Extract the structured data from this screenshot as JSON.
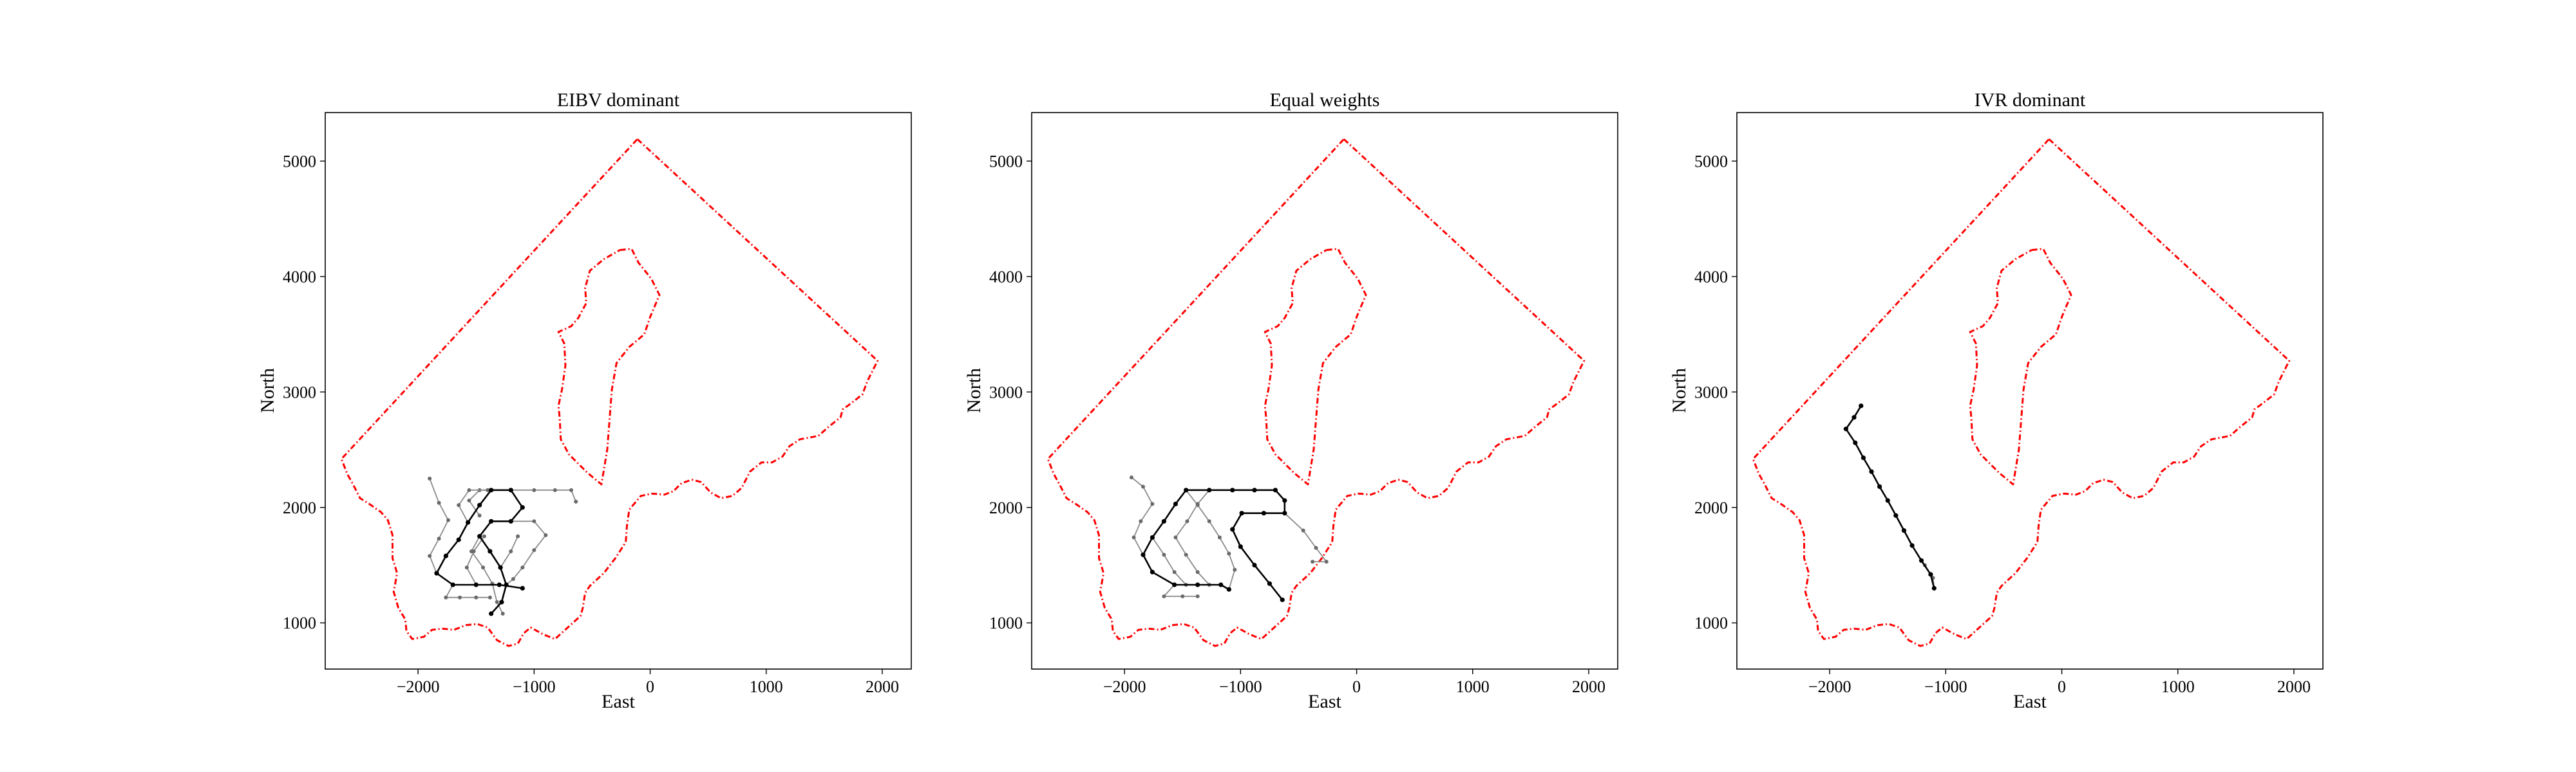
{
  "chart_data": [
    {
      "type": "line",
      "title": "EIBV dominant",
      "xlabel": "East",
      "ylabel": "North",
      "xlim": [
        -2800,
        2250
      ],
      "ylim": [
        600,
        5420
      ],
      "xticks": [
        -2000,
        -1000,
        0,
        1000,
        2000
      ],
      "yticks": [
        1000,
        2000,
        3000,
        4000,
        5000
      ],
      "trajectory": [
        [
          -1100,
          1300
        ],
        [
          -1300,
          1330
        ],
        [
          -1500,
          1330
        ],
        [
          -1700,
          1330
        ],
        [
          -1840,
          1430
        ],
        [
          -1760,
          1580
        ],
        [
          -1650,
          1720
        ],
        [
          -1570,
          1870
        ],
        [
          -1470,
          2020
        ],
        [
          -1370,
          2150
        ],
        [
          -1200,
          2150
        ],
        [
          -1100,
          2000
        ],
        [
          -1200,
          1880
        ],
        [
          -1370,
          1880
        ],
        [
          -1470,
          1750
        ],
        [
          -1380,
          1620
        ],
        [
          -1290,
          1480
        ],
        [
          -1240,
          1330
        ],
        [
          -1280,
          1180
        ],
        [
          -1370,
          1080
        ]
      ],
      "branches": [
        [
          [
            -1700,
            1330
          ],
          [
            -1760,
            1220
          ],
          [
            -1640,
            1220
          ],
          [
            -1500,
            1220
          ],
          [
            -1380,
            1220
          ]
        ],
        [
          [
            -1840,
            1430
          ],
          [
            -1900,
            1580
          ],
          [
            -1820,
            1730
          ],
          [
            -1740,
            1890
          ],
          [
            -1820,
            2040
          ],
          [
            -1900,
            2250
          ]
        ],
        [
          [
            -1500,
            1330
          ],
          [
            -1580,
            1480
          ],
          [
            -1520,
            1620
          ],
          [
            -1430,
            1750
          ]
        ],
        [
          [
            -1370,
            2150
          ],
          [
            -1470,
            2150
          ],
          [
            -1560,
            2060
          ],
          [
            -1470,
            1930
          ]
        ],
        [
          [
            -1200,
            2150
          ],
          [
            -1000,
            2150
          ],
          [
            -820,
            2150
          ],
          [
            -680,
            2150
          ],
          [
            -640,
            2050
          ]
        ],
        [
          [
            -1200,
            1880
          ],
          [
            -1000,
            1880
          ],
          [
            -900,
            1760
          ],
          [
            -1000,
            1630
          ],
          [
            -1100,
            1480
          ],
          [
            -1180,
            1380
          ],
          [
            -1240,
            1330
          ]
        ],
        [
          [
            -1470,
            1750
          ],
          [
            -1540,
            1620
          ],
          [
            -1440,
            1480
          ],
          [
            -1360,
            1340
          ],
          [
            -1320,
            1180
          ],
          [
            -1270,
            1080
          ]
        ],
        [
          [
            -1570,
            1870
          ],
          [
            -1650,
            2020
          ],
          [
            -1560,
            2150
          ],
          [
            -1400,
            2150
          ]
        ],
        [
          [
            -1290,
            1480
          ],
          [
            -1200,
            1620
          ],
          [
            -1140,
            1750
          ]
        ]
      ]
    },
    {
      "type": "line",
      "title": "Equal weights",
      "xlabel": "East",
      "ylabel": "North",
      "xlim": [
        -2800,
        2250
      ],
      "ylim": [
        600,
        5420
      ],
      "xticks": [
        -2000,
        -1000,
        0,
        1000,
        2000
      ],
      "yticks": [
        1000,
        2000,
        3000,
        4000,
        5000
      ],
      "trajectory": [
        [
          -1100,
          1290
        ],
        [
          -1170,
          1330
        ],
        [
          -1370,
          1330
        ],
        [
          -1570,
          1330
        ],
        [
          -1760,
          1440
        ],
        [
          -1840,
          1590
        ],
        [
          -1760,
          1740
        ],
        [
          -1660,
          1880
        ],
        [
          -1560,
          2030
        ],
        [
          -1470,
          2150
        ],
        [
          -1270,
          2150
        ],
        [
          -1070,
          2150
        ],
        [
          -880,
          2150
        ],
        [
          -700,
          2150
        ],
        [
          -620,
          2060
        ],
        [
          -620,
          1950
        ],
        [
          -800,
          1950
        ],
        [
          -990,
          1950
        ],
        [
          -1070,
          1810
        ],
        [
          -1000,
          1660
        ],
        [
          -880,
          1500
        ],
        [
          -750,
          1340
        ],
        [
          -640,
          1200
        ]
      ],
      "branches": [
        [
          [
            -1470,
            2150
          ],
          [
            -1370,
            2020
          ],
          [
            -1270,
            1880
          ],
          [
            -1180,
            1740
          ],
          [
            -1100,
            1600
          ],
          [
            -1050,
            1460
          ],
          [
            -1100,
            1290
          ]
        ],
        [
          [
            -1570,
            1330
          ],
          [
            -1660,
            1230
          ],
          [
            -1500,
            1230
          ],
          [
            -1370,
            1230
          ]
        ],
        [
          [
            -1840,
            1590
          ],
          [
            -1920,
            1740
          ],
          [
            -1860,
            1880
          ],
          [
            -1760,
            2030
          ],
          [
            -1840,
            2180
          ],
          [
            -1940,
            2260
          ]
        ],
        [
          [
            -1560,
            2030
          ],
          [
            -1660,
            1880
          ],
          [
            -1760,
            1740
          ],
          [
            -1660,
            1590
          ],
          [
            -1570,
            1440
          ],
          [
            -1470,
            1330
          ]
        ],
        [
          [
            -620,
            1950
          ],
          [
            -460,
            1800
          ],
          [
            -350,
            1650
          ],
          [
            -260,
            1530
          ],
          [
            -380,
            1530
          ]
        ],
        [
          [
            -1270,
            2150
          ],
          [
            -1370,
            2030
          ],
          [
            -1460,
            1880
          ],
          [
            -1560,
            1740
          ],
          [
            -1470,
            1590
          ],
          [
            -1370,
            1440
          ],
          [
            -1270,
            1330
          ]
        ]
      ]
    },
    {
      "type": "line",
      "title": "IVR dominant",
      "xlabel": "East",
      "ylabel": "North",
      "xlim": [
        -2800,
        2250
      ],
      "ylim": [
        600,
        5420
      ],
      "xticks": [
        -2000,
        -1000,
        0,
        1000,
        2000
      ],
      "yticks": [
        1000,
        2000,
        3000,
        4000,
        5000
      ],
      "trajectory": [
        [
          -1100,
          1300
        ],
        [
          -1130,
          1420
        ],
        [
          -1210,
          1540
        ],
        [
          -1290,
          1670
        ],
        [
          -1360,
          1800
        ],
        [
          -1430,
          1930
        ],
        [
          -1500,
          2060
        ],
        [
          -1570,
          2180
        ],
        [
          -1640,
          2310
        ],
        [
          -1710,
          2430
        ],
        [
          -1780,
          2560
        ],
        [
          -1860,
          2680
        ],
        [
          -1790,
          2780
        ],
        [
          -1730,
          2880
        ]
      ],
      "branches": [
        [
          [
            -1100,
            1300
          ],
          [
            -1110,
            1390
          ],
          [
            -1180,
            1500
          ]
        ]
      ]
    }
  ],
  "boundary": {
    "color": "#ff0000",
    "outer": [
      [
        -110,
        5190
      ],
      [
        1960,
        3270
      ],
      [
        1870,
        3090
      ],
      [
        1830,
        2980
      ],
      [
        1730,
        2900
      ],
      [
        1660,
        2850
      ],
      [
        1640,
        2780
      ],
      [
        1540,
        2700
      ],
      [
        1450,
        2620
      ],
      [
        1290,
        2590
      ],
      [
        1200,
        2530
      ],
      [
        1140,
        2440
      ],
      [
        1050,
        2390
      ],
      [
        960,
        2390
      ],
      [
        860,
        2310
      ],
      [
        790,
        2170
      ],
      [
        710,
        2100
      ],
      [
        610,
        2080
      ],
      [
        520,
        2130
      ],
      [
        440,
        2220
      ],
      [
        360,
        2240
      ],
      [
        270,
        2210
      ],
      [
        200,
        2140
      ],
      [
        120,
        2110
      ],
      [
        20,
        2120
      ],
      [
        -80,
        2100
      ],
      [
        -180,
        1980
      ],
      [
        -200,
        1840
      ],
      [
        -210,
        1700
      ],
      [
        -300,
        1560
      ],
      [
        -400,
        1430
      ],
      [
        -520,
        1320
      ],
      [
        -560,
        1260
      ],
      [
        -580,
        1130
      ],
      [
        -600,
        1060
      ],
      [
        -710,
        960
      ],
      [
        -820,
        860
      ],
      [
        -920,
        900
      ],
      [
        -1030,
        960
      ],
      [
        -1090,
        910
      ],
      [
        -1140,
        820
      ],
      [
        -1220,
        800
      ],
      [
        -1320,
        850
      ],
      [
        -1400,
        960
      ],
      [
        -1490,
        990
      ],
      [
        -1590,
        980
      ],
      [
        -1690,
        940
      ],
      [
        -1790,
        950
      ],
      [
        -1880,
        940
      ],
      [
        -1950,
        880
      ],
      [
        -2050,
        860
      ],
      [
        -2100,
        930
      ],
      [
        -2110,
        1030
      ],
      [
        -2170,
        1130
      ],
      [
        -2210,
        1270
      ],
      [
        -2180,
        1430
      ],
      [
        -2220,
        1560
      ],
      [
        -2220,
        1760
      ],
      [
        -2260,
        1890
      ],
      [
        -2320,
        1960
      ],
      [
        -2420,
        2030
      ],
      [
        -2500,
        2080
      ],
      [
        -2560,
        2200
      ],
      [
        -2610,
        2290
      ],
      [
        -2660,
        2420
      ],
      [
        -110,
        5190
      ]
    ],
    "island": [
      [
        -260,
        4230
      ],
      [
        -160,
        4240
      ],
      [
        -100,
        4120
      ],
      [
        10,
        3980
      ],
      [
        80,
        3840
      ],
      [
        0,
        3650
      ],
      [
        -50,
        3500
      ],
      [
        -180,
        3390
      ],
      [
        -290,
        3250
      ],
      [
        -330,
        3020
      ],
      [
        -350,
        2760
      ],
      [
        -370,
        2500
      ],
      [
        -420,
        2200
      ],
      [
        -540,
        2300
      ],
      [
        -700,
        2460
      ],
      [
        -770,
        2590
      ],
      [
        -780,
        2780
      ],
      [
        -790,
        2880
      ],
      [
        -760,
        3020
      ],
      [
        -730,
        3230
      ],
      [
        -740,
        3420
      ],
      [
        -790,
        3520
      ],
      [
        -680,
        3570
      ],
      [
        -620,
        3640
      ],
      [
        -550,
        3770
      ],
      [
        -560,
        3900
      ],
      [
        -520,
        4050
      ],
      [
        -400,
        4150
      ],
      [
        -260,
        4230
      ]
    ]
  }
}
